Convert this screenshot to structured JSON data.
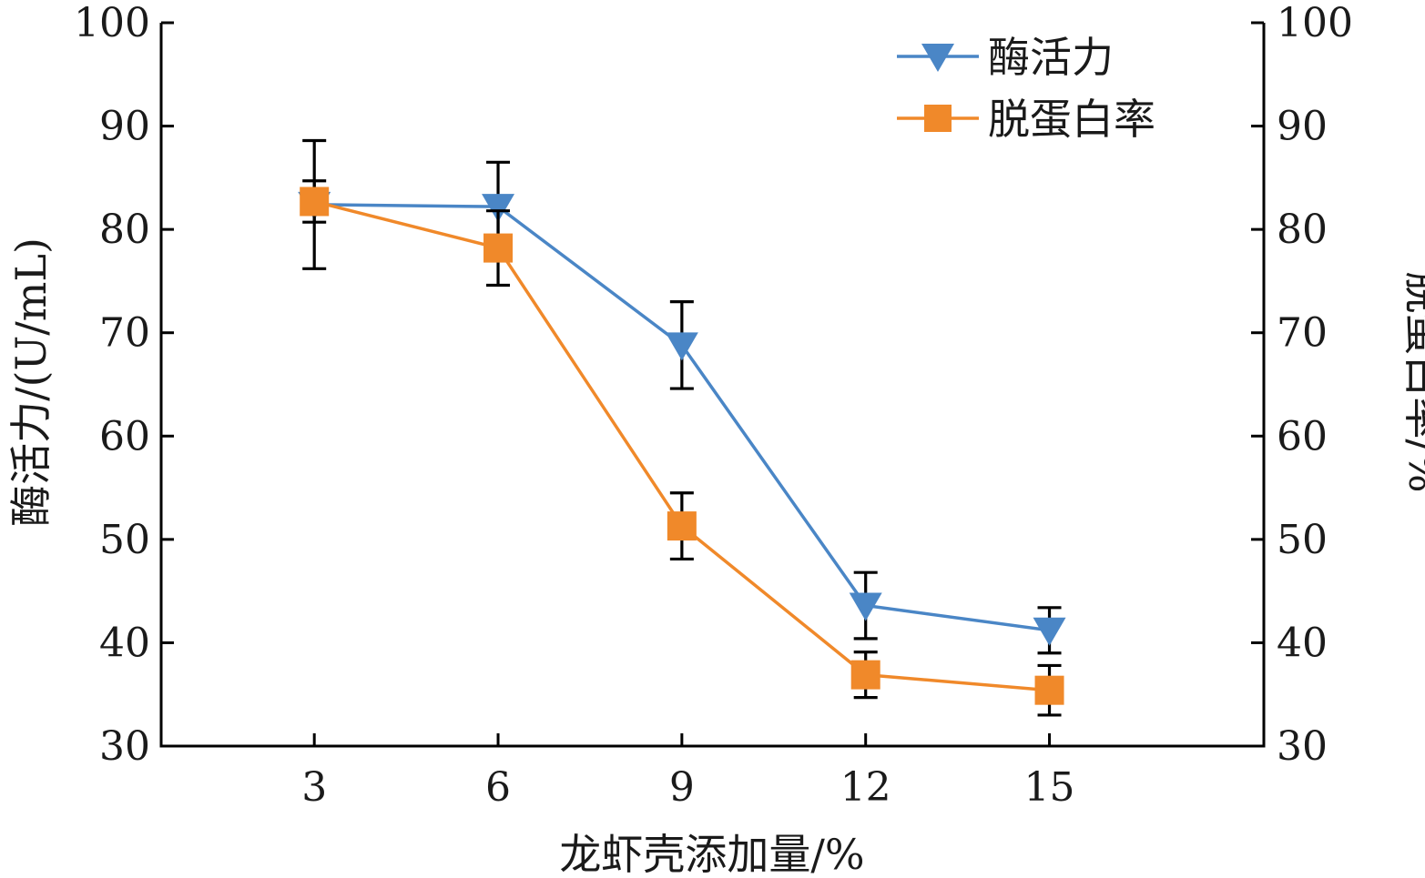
{
  "chart_data": {
    "type": "line",
    "xlabel": "龙虾壳添加量/%",
    "ylabel_left": "酶活力/(U/mL)",
    "ylabel_right": "脱蛋白率/%",
    "x": [
      3,
      6,
      9,
      12,
      15
    ],
    "x_tick_labels": [
      "3",
      "6",
      "9",
      "12",
      "15"
    ],
    "xlim": [
      0.5,
      18.5
    ],
    "ylim_left": [
      30,
      100
    ],
    "ylim_right": [
      30,
      100
    ],
    "y_ticks": [
      30,
      40,
      50,
      60,
      70,
      80,
      90,
      100
    ],
    "y_tick_labels": [
      "30",
      "40",
      "50",
      "60",
      "70",
      "80",
      "90",
      "100"
    ],
    "grid": false,
    "legend_position": "top-right",
    "series": [
      {
        "name": "酶活力",
        "axis": "left",
        "marker": "triangle-down",
        "color": "#4a86c6",
        "values": [
          82.4,
          82.2,
          68.8,
          43.6,
          41.2
        ],
        "error": [
          6.2,
          4.3,
          4.2,
          3.2,
          2.2
        ]
      },
      {
        "name": "脱蛋白率",
        "axis": "right",
        "marker": "square",
        "color": "#f0892a",
        "values": [
          82.7,
          78.2,
          51.3,
          36.9,
          35.4
        ],
        "error": [
          2.0,
          3.6,
          3.2,
          2.2,
          2.4
        ]
      }
    ]
  }
}
